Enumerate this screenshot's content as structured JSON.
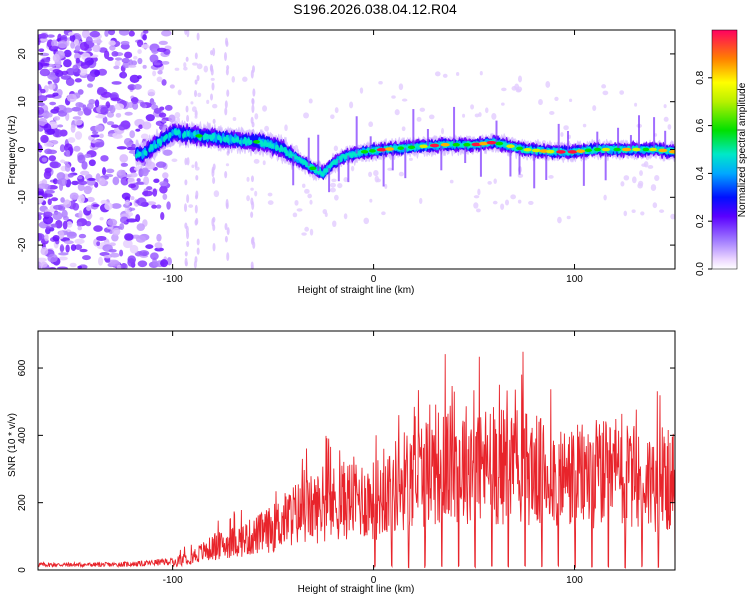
{
  "title": "S196.2026.038.04.12.R04",
  "chart_data": [
    {
      "type": "heatmap",
      "xlabel": "Height of straight line (km)",
      "ylabel": "Frequency (Hz)",
      "xlim": [
        -167,
        150
      ],
      "ylim": [
        -25,
        25
      ],
      "xticks": [
        -100,
        0,
        100
      ],
      "yticks": [
        -20,
        -10,
        0,
        10,
        20
      ],
      "grid": false,
      "description_points": {
        "noise_region_x": [
          -167,
          -100
        ],
        "signal_track": [
          [
            -115,
            -1
          ],
          [
            -105,
            2
          ],
          [
            -100,
            3.5
          ],
          [
            -90,
            3
          ],
          [
            -80,
            2.5
          ],
          [
            -70,
            2
          ],
          [
            -55,
            1.5
          ],
          [
            -45,
            0
          ],
          [
            -38,
            -2
          ],
          [
            -30,
            -4
          ],
          [
            -25,
            -5
          ],
          [
            -20,
            -3
          ],
          [
            -15,
            -1.5
          ],
          [
            -5,
            -0.5
          ],
          [
            5,
            0
          ],
          [
            20,
            0.5
          ],
          [
            35,
            1
          ],
          [
            50,
            1
          ],
          [
            60,
            1.5
          ],
          [
            75,
            0
          ],
          [
            90,
            -0.5
          ],
          [
            100,
            -0.5
          ],
          [
            110,
            0
          ],
          [
            125,
            0
          ],
          [
            140,
            0
          ],
          [
            150,
            -0.5
          ]
        ]
      },
      "colorbar": {
        "label": "Normalized spectral amplitude",
        "range": [
          0,
          1
        ],
        "ticks": [
          "0.0",
          "0.2",
          "0.4",
          "0.6",
          "0.8"
        ],
        "tick_values": [
          0.0,
          0.2,
          0.4,
          0.6,
          0.8
        ]
      }
    },
    {
      "type": "line",
      "xlabel": "Height of straight line (km)",
      "ylabel": "SNR (10 * v/v)",
      "xlim": [
        -167,
        150
      ],
      "ylim": [
        0,
        710
      ],
      "xticks": [
        -100,
        0,
        100
      ],
      "yticks": [
        0,
        200,
        400,
        600
      ],
      "series": [
        {
          "name": "SNR",
          "color": "#e8242b",
          "envelope_x": [
            -167,
            -130,
            -115,
            -100,
            -90,
            -80,
            -70,
            -60,
            -50,
            -40,
            -30,
            -20,
            -10,
            0,
            10,
            20,
            30,
            40,
            50,
            60,
            70,
            80,
            90,
            100,
            110,
            120,
            130,
            140,
            150
          ],
          "envelope_y": [
            15,
            15,
            18,
            25,
            50,
            80,
            100,
            120,
            150,
            200,
            220,
            240,
            260,
            250,
            300,
            340,
            370,
            380,
            390,
            370,
            380,
            360,
            340,
            330,
            350,
            340,
            330,
            320,
            320
          ],
          "dropout_spacing_km": 8.3,
          "dropout_start_km": 0.5
        }
      ]
    }
  ]
}
